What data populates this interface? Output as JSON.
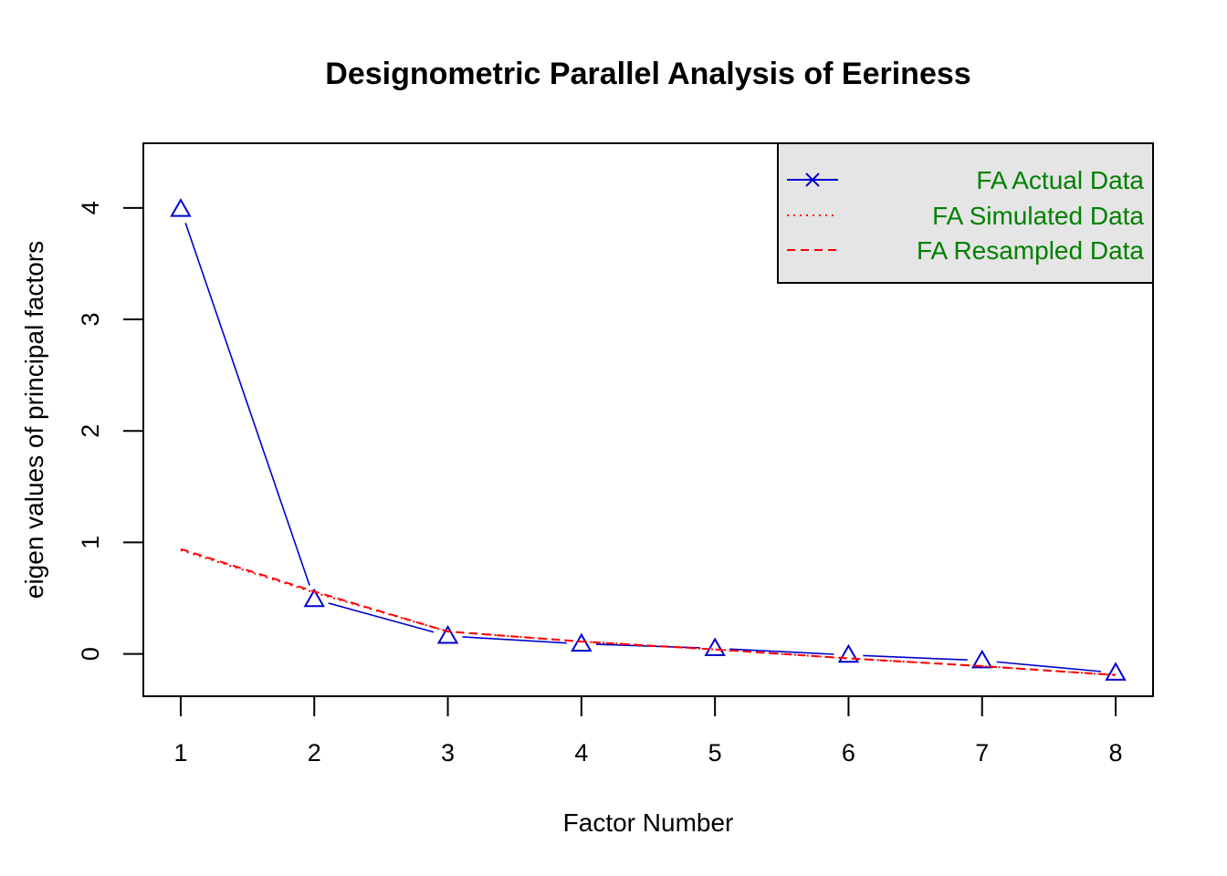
{
  "chart_data": {
    "type": "line",
    "title": "Designometric Parallel Analysis of Eeriness",
    "xlabel": "Factor Number",
    "ylabel": "eigen values of principal factors",
    "x": [
      1,
      2,
      3,
      4,
      5,
      6,
      7,
      8
    ],
    "xlim": [
      0.72,
      8.28
    ],
    "ylim": [
      -0.38,
      4.58
    ],
    "x_ticks": [
      "1",
      "2",
      "3",
      "4",
      "5",
      "6",
      "7",
      "8"
    ],
    "y_ticks": [
      "0",
      "1",
      "2",
      "3",
      "4"
    ],
    "grid": false,
    "legend_position": "top-right",
    "legend_background": "#e5e5e5",
    "legend_text_color": "#008000",
    "series": [
      {
        "name": "FA  Actual Data",
        "color": "#0000cd",
        "style": "solid",
        "marker": "triangle",
        "legend_marker": "x",
        "values": [
          3.99,
          0.49,
          0.16,
          0.09,
          0.05,
          -0.01,
          -0.06,
          -0.17
        ]
      },
      {
        "name": "FA  Simulated Data",
        "color": "#ff0000",
        "style": "dotted",
        "values": [
          0.93,
          0.55,
          0.2,
          0.11,
          0.04,
          -0.04,
          -0.11,
          -0.19
        ]
      },
      {
        "name": "FA  Resampled Data",
        "color": "#ff0000",
        "style": "dashed",
        "values": [
          0.94,
          0.56,
          0.2,
          0.11,
          0.04,
          -0.04,
          -0.11,
          -0.19
        ]
      }
    ]
  }
}
